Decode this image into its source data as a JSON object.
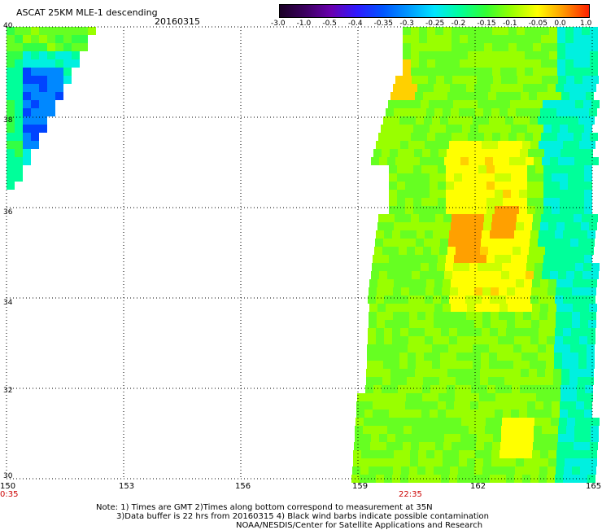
{
  "header": {
    "title": "ASCAT 25KM MLE-1 descending",
    "date": "20160315"
  },
  "colorbar": {
    "tick_labels": [
      "-3.0",
      "-1.0",
      "-0.5",
      "-0.4",
      "-0.35",
      "-0.3",
      "-0.25",
      "-0.2",
      "-0.15",
      "-0.1",
      "-0.05",
      "0.0",
      "1.0"
    ],
    "colors": [
      "#1a0026",
      "#3c0060",
      "#6a00b0",
      "#2f1aff",
      "#0055ff",
      "#0099ff",
      "#00e5ff",
      "#00ff9a",
      "#33ff33",
      "#99ff00",
      "#ffff00",
      "#ff9900",
      "#ff2000"
    ]
  },
  "axes": {
    "lat_labels": [
      "40",
      "38",
      "36",
      "34",
      "32",
      "30"
    ],
    "lon_labels": [
      "150",
      "153",
      "156",
      "159",
      "162",
      "165"
    ],
    "grid_style": "dotted"
  },
  "times": {
    "left": "0:35",
    "right": "22:35"
  },
  "notes": {
    "line1": "Note: 1) Times are GMT 2)Times along bottom correspond to measurement at 35N",
    "line2": "3)Data buffer is 22 hrs from 20160315 4) Black wind barbs indicate possible contamination",
    "line3": "NOAA/NESDIS/Center for Satellite Applications and Research"
  },
  "map_data": {
    "lon_range": [
      150,
      165
    ],
    "lat_range": [
      30,
      40
    ],
    "swaths": [
      "west swath near 150E-152E, 37-40N, mostly cyan/blue values",
      "east swath near 159E-165E, 30-40N, mostly green with yellow/orange patches near 161-163E, 34.5-36.5N"
    ]
  }
}
